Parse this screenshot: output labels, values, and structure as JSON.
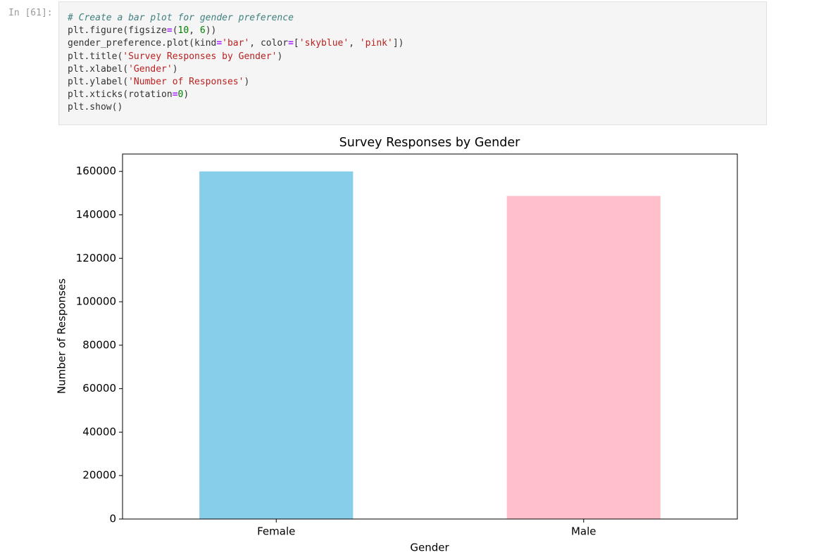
{
  "cell": {
    "prompt": "In [61]:",
    "code_lines": [
      "# Create a bar plot for gender preference",
      "plt.figure(figsize=(10, 6))",
      "gender_preference.plot(kind='bar', color=['skyblue', 'pink'])",
      "plt.title('Survey Responses by Gender')",
      "plt.xlabel('Gender')",
      "plt.ylabel('Number of Responses')",
      "plt.xticks(rotation=0)",
      "plt.show()"
    ]
  },
  "chart_data": {
    "type": "bar",
    "title": "Survey Responses by Gender",
    "x_label": "Gender",
    "y_label": "Number of Responses",
    "categories": [
      "Female",
      "Male"
    ],
    "values": [
      160000,
      148700
    ],
    "colors": [
      "#87ceeb",
      "#ffc0cb"
    ],
    "ylim": [
      0,
      168000
    ],
    "yticks": [
      0,
      20000,
      40000,
      60000,
      80000,
      100000,
      120000,
      140000,
      160000
    ],
    "grid": false
  }
}
